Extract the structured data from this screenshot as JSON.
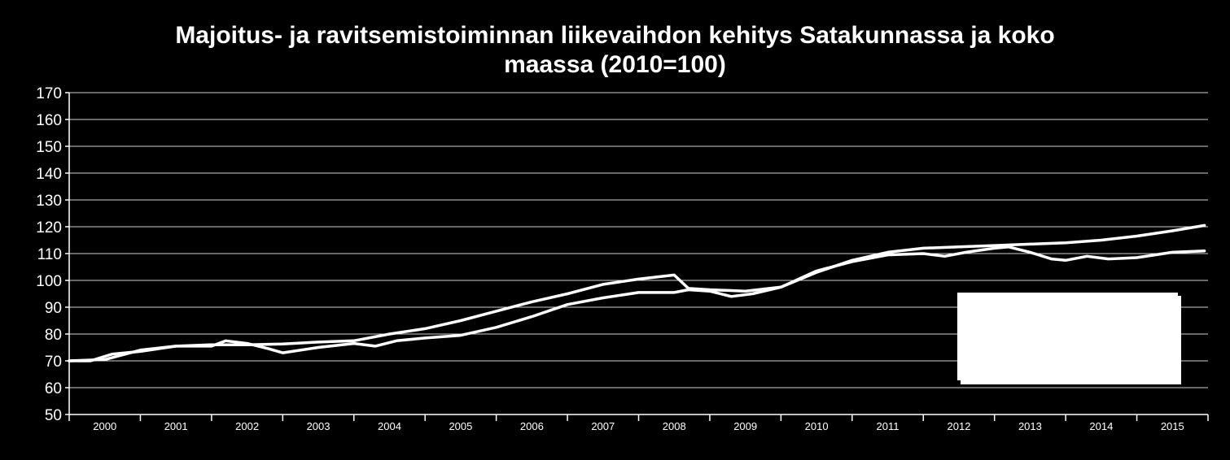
{
  "chart_data": {
    "type": "line",
    "title_lines": [
      "Majoitus- ja ravitsemistoiminnan liikevaihdon kehitys Satakunnassa ja koko",
      "maassa (2010=100)"
    ],
    "xlabel": "",
    "ylabel": "",
    "ylim": [
      50,
      170
    ],
    "y_ticks": [
      50,
      60,
      70,
      80,
      90,
      100,
      110,
      120,
      130,
      140,
      150,
      160,
      170
    ],
    "categories": [
      "2000",
      "2001",
      "2002",
      "2003",
      "2004",
      "2005",
      "2006",
      "2007",
      "2008",
      "2009",
      "2010",
      "2011",
      "2012",
      "2013",
      "2014",
      "2015"
    ],
    "x_start": 2000,
    "x_end": 2016,
    "grid": true,
    "legend": "box at right, text not visible",
    "line_color": "#ffffff",
    "series": [
      {
        "x": [
          2000.0,
          2000.5,
          2001.0,
          2001.5,
          2002.0,
          2002.5,
          2003.0,
          2003.5,
          2004.0,
          2004.5,
          2005.0,
          2005.5,
          2006.0,
          2006.5,
          2007.0,
          2007.5,
          2008.0,
          2008.5,
          2008.7,
          2009.0,
          2009.5,
          2010.0,
          2010.5,
          2011.0,
          2011.5,
          2012.0,
          2012.5,
          2013.0,
          2013.5,
          2014.0,
          2014.5,
          2015.0,
          2015.5,
          2015.95
        ],
        "y": [
          70,
          70.5,
          74,
          75.5,
          76,
          76,
          76.3,
          77,
          77.5,
          80,
          82,
          85,
          88.5,
          92,
          95,
          98.5,
          100.5,
          102,
          97,
          96.5,
          96,
          97.5,
          103,
          107.5,
          110.5,
          112,
          112.5,
          113,
          113.5,
          114,
          115,
          116.5,
          118.5,
          120.5
        ]
      },
      {
        "x": [
          2000.0,
          2000.3,
          2000.6,
          2001.0,
          2001.5,
          2002.0,
          2002.2,
          2002.5,
          2002.8,
          2003.0,
          2003.5,
          2004.0,
          2004.3,
          2004.6,
          2005.0,
          2005.5,
          2006.0,
          2006.5,
          2007.0,
          2007.5,
          2008.0,
          2008.5,
          2008.7,
          2009.0,
          2009.3,
          2009.6,
          2010.0,
          2010.5,
          2011.0,
          2011.5,
          2012.0,
          2012.3,
          2012.6,
          2013.0,
          2013.2,
          2013.5,
          2013.8,
          2014.0,
          2014.3,
          2014.6,
          2015.0,
          2015.5,
          2015.95
        ],
        "y": [
          70,
          70,
          72.5,
          73.5,
          75.5,
          75.5,
          77.5,
          76.5,
          74.5,
          73,
          75,
          76.5,
          75.5,
          77.5,
          78.5,
          79.5,
          82.5,
          86.5,
          91,
          93.5,
          95.5,
          95.5,
          96.5,
          96,
          94,
          95,
          97.5,
          103.5,
          107,
          109.5,
          110,
          109,
          110.5,
          112,
          112.5,
          110.5,
          108,
          107.5,
          109,
          108,
          108.5,
          110.5,
          111
        ]
      }
    ]
  }
}
